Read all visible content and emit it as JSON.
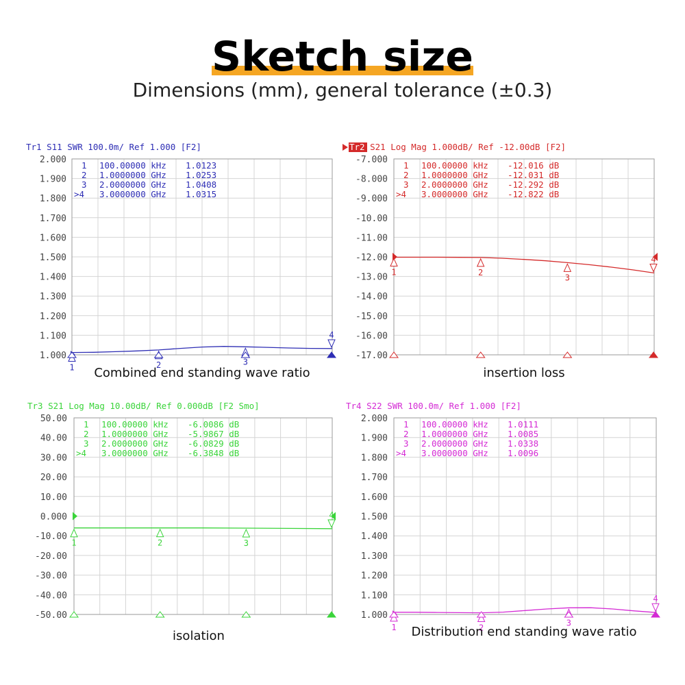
{
  "page": {
    "title": "Sketch size",
    "subtitle": "Dimensions (mm), general tolerance (±0.3)"
  },
  "chart_data": [
    {
      "type": "line",
      "header": "Tr1  S11  SWR 100.0m/ Ref 1.000 [F2]",
      "caption": "Combined end standing wave ratio",
      "color": "#2d2db4",
      "ytick_labels": [
        "2.000",
        "1.900",
        "1.800",
        "1.700",
        "1.600",
        "1.500",
        "1.400",
        "1.300",
        "1.200",
        "1.100",
        "1.000"
      ],
      "ylim": [
        1.0,
        2.0
      ],
      "xlim": [
        0,
        3
      ],
      "x_unit": "GHz",
      "grid": true,
      "markers": [
        {
          "label": "1",
          "freq": "100.00000 kHz",
          "value": "1.0123"
        },
        {
          "label": "2",
          "freq": "1.0000000 GHz",
          "value": "1.0253"
        },
        {
          "label": "3",
          "freq": "2.0000000 GHz",
          "value": "1.0408"
        },
        {
          "label": ">4",
          "freq": "3.0000000 GHz",
          "value": "1.0315"
        }
      ],
      "marker_x": [
        0.0001,
        1,
        2,
        3
      ],
      "marker_y": [
        1.0123,
        1.0253,
        1.0408,
        1.0315
      ],
      "x": [
        0,
        0.25,
        0.5,
        0.75,
        1,
        1.25,
        1.5,
        1.75,
        2,
        2.25,
        2.5,
        2.75,
        3
      ],
      "y": [
        1.012,
        1.013,
        1.016,
        1.02,
        1.025,
        1.033,
        1.04,
        1.043,
        1.041,
        1.038,
        1.035,
        1.033,
        1.032
      ]
    },
    {
      "type": "line",
      "header": "Tr2  S21  Log Mag 1.000dB/ Ref -12.00dB [F2]",
      "caption": "insertion loss",
      "color": "#d42a2a",
      "ytick_labels": [
        "-7.000",
        "-8.000",
        "-9.000",
        "-10.00",
        "-11.00",
        "-12.00",
        "-13.00",
        "-14.00",
        "-15.00",
        "-16.00",
        "-17.00"
      ],
      "ylim": [
        -17,
        -7
      ],
      "xlim": [
        0,
        3
      ],
      "x_unit": "GHz",
      "grid": true,
      "markers": [
        {
          "label": "1",
          "freq": "100.00000 kHz",
          "value": "-12.016 dB"
        },
        {
          "label": "2",
          "freq": "1.0000000 GHz",
          "value": "-12.031 dB"
        },
        {
          "label": "3",
          "freq": "2.0000000 GHz",
          "value": "-12.292 dB"
        },
        {
          "label": ">4",
          "freq": "3.0000000 GHz",
          "value": "-12.822 dB"
        }
      ],
      "marker_x": [
        0.0001,
        1,
        2,
        3
      ],
      "marker_y": [
        -12.016,
        -12.031,
        -12.292,
        -12.822
      ],
      "x": [
        0,
        0.25,
        0.5,
        0.75,
        1,
        1.25,
        1.5,
        1.75,
        2,
        2.25,
        2.5,
        2.75,
        3
      ],
      "y": [
        -12.016,
        -12.017,
        -12.019,
        -12.024,
        -12.031,
        -12.07,
        -12.13,
        -12.2,
        -12.292,
        -12.4,
        -12.52,
        -12.66,
        -12.822
      ]
    },
    {
      "type": "line",
      "header": "Tr3  S21  Log Mag 10.00dB/ Ref 0.000dB [F2 Smo]",
      "caption": "isolation",
      "color": "#3ad43a",
      "ytick_labels": [
        "50.00",
        "40.00",
        "30.00",
        "20.00",
        "10.00",
        "0.000",
        "-10.00",
        "-20.00",
        "-30.00",
        "-40.00",
        "-50.00"
      ],
      "ylim": [
        -50,
        50
      ],
      "xlim": [
        0,
        3
      ],
      "x_unit": "GHz",
      "grid": true,
      "markers": [
        {
          "label": "1",
          "freq": "100.00000 kHz",
          "value": "-6.0086 dB"
        },
        {
          "label": "2",
          "freq": "1.0000000 GHz",
          "value": "-5.9867 dB"
        },
        {
          "label": "3",
          "freq": "2.0000000 GHz",
          "value": "-6.0829 dB"
        },
        {
          "label": ">4",
          "freq": "3.0000000 GHz",
          "value": "-6.3848 dB"
        }
      ],
      "marker_x": [
        0.0001,
        1,
        2,
        3
      ],
      "marker_y": [
        -6.0086,
        -5.9867,
        -6.0829,
        -6.3848
      ],
      "x": [
        0,
        0.5,
        1,
        1.5,
        2,
        2.5,
        3
      ],
      "y": [
        -6.0086,
        -5.99,
        -5.9867,
        -6.0,
        -6.0829,
        -6.25,
        -6.3848
      ]
    },
    {
      "type": "line",
      "header": "Tr4  S22  SWR 100.0m/ Ref 1.000 [F2]",
      "caption": "Distribution end standing wave ratio",
      "color": "#d42ad4",
      "ytick_labels": [
        "2.000",
        "1.900",
        "1.800",
        "1.700",
        "1.600",
        "1.500",
        "1.400",
        "1.300",
        "1.200",
        "1.100",
        "1.000"
      ],
      "ylim": [
        1.0,
        2.0
      ],
      "xlim": [
        0,
        3
      ],
      "x_unit": "GHz",
      "grid": true,
      "markers": [
        {
          "label": "1",
          "freq": "100.00000 kHz",
          "value": "1.0111"
        },
        {
          "label": "2",
          "freq": "1.0000000 GHz",
          "value": "1.0085"
        },
        {
          "label": "3",
          "freq": "2.0000000 GHz",
          "value": "1.0338"
        },
        {
          "label": ">4",
          "freq": "3.0000000 GHz",
          "value": "1.0096"
        }
      ],
      "marker_x": [
        0.0001,
        1,
        2,
        3
      ],
      "marker_y": [
        1.0111,
        1.0085,
        1.0338,
        1.0096
      ],
      "x": [
        0,
        0.25,
        0.5,
        0.75,
        1,
        1.25,
        1.5,
        1.75,
        2,
        2.25,
        2.5,
        2.75,
        3
      ],
      "y": [
        1.0111,
        1.011,
        1.01,
        1.009,
        1.0085,
        1.012,
        1.02,
        1.028,
        1.0338,
        1.034,
        1.028,
        1.018,
        1.0096
      ]
    }
  ]
}
